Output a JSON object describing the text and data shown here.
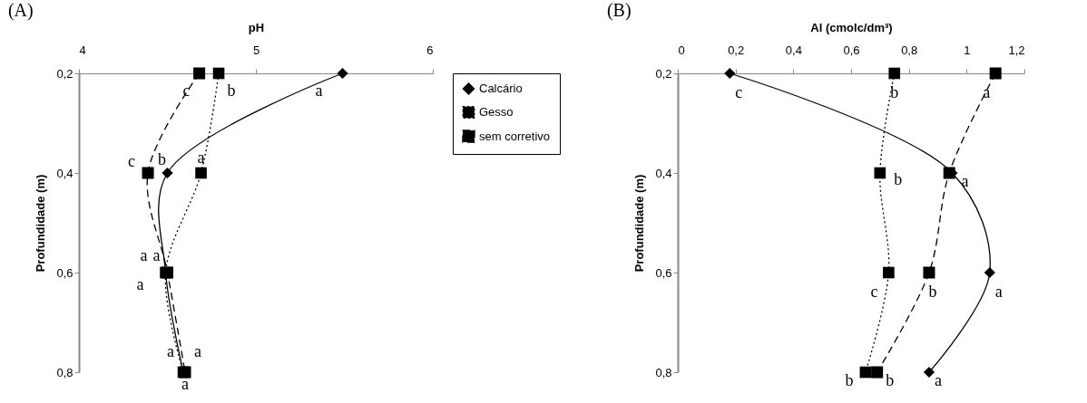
{
  "chart_data": [
    {
      "type": "line",
      "orientation": "horizontal",
      "title": "(A)",
      "xlabel": "pH",
      "ylabel": "Profundidade (m)",
      "categories": [
        "0,2",
        "0,4",
        "0,6",
        "0,8"
      ],
      "xlim": [
        4,
        6
      ],
      "xticks": [
        4,
        5,
        6
      ],
      "grid": false,
      "legend": "right",
      "series": [
        {
          "name": "Calcário",
          "color": "#000000",
          "marker": "diamond",
          "line_style": "solid",
          "values": [
            5.49,
            4.5,
            4.49,
            4.59
          ]
        },
        {
          "name": "Gesso",
          "color": "#000000",
          "marker": "square",
          "line_style": "dotted",
          "values": [
            4.79,
            4.69,
            4.49,
            4.59
          ]
        },
        {
          "name": "sem corretivo",
          "color": "#000000",
          "marker": "square",
          "line_style": "dashed",
          "values": [
            4.68,
            4.39,
            4.5,
            4.6
          ]
        }
      ],
      "annotations": [
        {
          "text": "c",
          "x": 4.68,
          "y": "0,2"
        },
        {
          "text": "b",
          "x": 4.79,
          "y": "0,2"
        },
        {
          "text": "a",
          "x": 5.49,
          "y": "0,2"
        },
        {
          "text": "c",
          "x": 4.39,
          "y": "0,4"
        },
        {
          "text": "b",
          "x": 4.5,
          "y": "0,4"
        },
        {
          "text": "a",
          "x": 4.69,
          "y": "0,4"
        },
        {
          "text": "a",
          "x": 4.5,
          "y": "0,6"
        },
        {
          "text": "a",
          "x": 4.49,
          "y": "0,6"
        },
        {
          "text": "a",
          "x": 4.49,
          "y": "0,6"
        },
        {
          "text": "a",
          "x": 4.59,
          "y": "0,8"
        },
        {
          "text": "a",
          "x": 4.59,
          "y": "0,8"
        },
        {
          "text": "a",
          "x": 4.6,
          "y": "0,8"
        }
      ]
    },
    {
      "type": "line",
      "orientation": "horizontal",
      "title": "(B)",
      "xlabel": "Al (cmolc/dm³)",
      "ylabel": "Profundidade (m)",
      "categories": [
        "0,2",
        "0,4",
        "0,6",
        "0,8"
      ],
      "xlim": [
        0,
        1.2
      ],
      "xticks": [
        0,
        {
          "value": 0.2,
          "label": "0,2"
        },
        {
          "value": 0.4,
          "label": "0,4"
        },
        {
          "value": 0.6,
          "label": "0,6"
        },
        {
          "value": 0.8,
          "label": "0,8"
        },
        1,
        {
          "value": 1.2,
          "label": "1,2"
        }
      ],
      "grid": false,
      "series": [
        {
          "color": "#000000",
          "marker": "diamond",
          "line_style": "solid",
          "values": [
            0.18,
            0.95,
            1.08,
            0.87
          ]
        },
        {
          "color": "#000000",
          "marker": "square",
          "line_style": "dotted",
          "values": [
            0.75,
            0.7,
            0.73,
            0.65
          ]
        },
        {
          "color": "#000000",
          "marker": "square",
          "line_style": "dashed",
          "values": [
            1.1,
            0.94,
            0.87,
            0.69
          ]
        }
      ],
      "annotations": [
        {
          "text": "c",
          "x": 0.18,
          "y": "0,2"
        },
        {
          "text": "b",
          "x": 0.75,
          "y": "0,2"
        },
        {
          "text": "a",
          "x": 1.1,
          "y": "0,2"
        },
        {
          "text": "b",
          "x": 0.7,
          "y": "0,4"
        },
        {
          "text": "a",
          "x": 0.95,
          "y": "0,4"
        },
        {
          "text": "c",
          "x": 0.73,
          "y": "0,6"
        },
        {
          "text": "b",
          "x": 0.87,
          "y": "0,6"
        },
        {
          "text": "a",
          "x": 1.08,
          "y": "0,6"
        },
        {
          "text": "b",
          "x": 0.65,
          "y": "0,8"
        },
        {
          "text": "b",
          "x": 0.69,
          "y": "0,8"
        },
        {
          "text": "a",
          "x": 0.87,
          "y": "0,8"
        }
      ]
    }
  ]
}
